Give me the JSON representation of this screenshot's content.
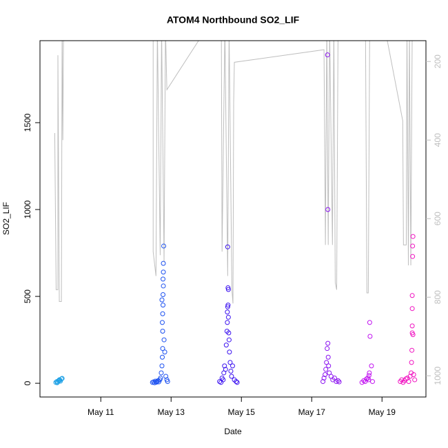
{
  "chart_data": {
    "type": "scatter",
    "title": "ATOM4 Northbound SO2_LIF",
    "x_label": "Date",
    "y_label": "SO2_LIF",
    "xlim": [
      9.27,
      20.25
    ],
    "xticks": [
      {
        "value": 11,
        "label": "May 11"
      },
      {
        "value": 13,
        "label": "May 13"
      },
      {
        "value": 15,
        "label": "May 15"
      },
      {
        "value": 17,
        "label": "May 17"
      },
      {
        "value": 19,
        "label": "May 19"
      }
    ],
    "ylim": [
      -79,
      1972
    ],
    "yticks": [
      0,
      500,
      1000,
      1500
    ],
    "y2lim": [
      1054,
      147
    ],
    "y2ticks": [
      200,
      400,
      600,
      800,
      1000
    ],
    "series": [
      {
        "color": "#1ca0e6",
        "x": [
          9.72,
          9.75,
          9.78,
          9.8,
          9.82,
          9.85,
          9.88,
          9.9,
          9.76,
          9.84
        ],
        "values": [
          5,
          10,
          8,
          15,
          20,
          12,
          25,
          28,
          3,
          18
        ]
      },
      {
        "color": "#1a4ff0",
        "x": [
          12.47,
          12.5,
          12.53,
          12.55,
          12.58,
          12.6,
          12.63,
          12.65,
          12.68,
          12.7,
          12.72,
          12.74,
          12.75,
          12.76,
          12.76,
          12.76,
          12.77,
          12.77,
          12.77,
          12.78,
          12.78,
          12.79,
          12.8,
          12.82,
          12.85,
          12.88,
          12.9,
          12.75,
          12.74,
          12.78
        ],
        "values": [
          5,
          8,
          3,
          12,
          6,
          10,
          15,
          8,
          20,
          30,
          60,
          100,
          150,
          200,
          300,
          400,
          450,
          510,
          600,
          640,
          690,
          790,
          250,
          180,
          40,
          20,
          10,
          350,
          480,
          560
        ]
      },
      {
        "color": "#3a10f0",
        "x": [
          14.38,
          14.42,
          14.45,
          14.48,
          14.5,
          14.52,
          14.55,
          14.57,
          14.59,
          14.6,
          14.61,
          14.62,
          14.62,
          14.63,
          14.63,
          14.64,
          14.65,
          14.66,
          14.68,
          14.7,
          14.72,
          14.75,
          14.8,
          14.85,
          14.88,
          14.61,
          14.6
        ],
        "values": [
          10,
          5,
          30,
          20,
          60,
          100,
          80,
          220,
          300,
          350,
          440,
          450,
          550,
          540,
          380,
          290,
          250,
          180,
          120,
          70,
          40,
          100,
          20,
          10,
          5,
          785,
          410
        ]
      },
      {
        "color": "#8a10f0",
        "x": [
          17.32,
          17.35,
          17.38,
          17.4,
          17.42,
          17.44,
          17.45,
          17.46,
          17.46,
          17.47,
          17.48,
          17.5,
          17.55,
          17.6,
          17.65,
          17.7,
          17.75,
          17.78
        ],
        "values": [
          10,
          30,
          50,
          80,
          120,
          200,
          1890,
          1000,
          230,
          150,
          100,
          60,
          40,
          20,
          30,
          10,
          15,
          8
        ]
      },
      {
        "color": "#c010f0",
        "x": [
          18.43,
          18.48,
          18.52,
          18.56,
          18.6,
          18.62,
          18.63,
          18.64,
          18.65,
          18.66,
          18.7,
          18.73
        ],
        "values": [
          5,
          15,
          10,
          25,
          30,
          20,
          45,
          60,
          350,
          270,
          100,
          10
        ]
      },
      {
        "color": "#f010c0",
        "x": [
          19.52,
          19.56,
          19.6,
          19.64,
          19.68,
          19.72,
          19.76,
          19.8,
          19.83,
          19.84,
          19.85,
          19.86,
          19.86,
          19.86,
          19.86,
          19.87,
          19.87,
          19.88,
          19.88,
          19.9,
          19.93
        ],
        "values": [
          10,
          20,
          5,
          15,
          25,
          30,
          10,
          40,
          60,
          120,
          190,
          290,
          330,
          430,
          505,
          730,
          790,
          845,
          280,
          50,
          20
        ]
      },
      {
        "type": "line",
        "axis": "y2",
        "color": "#bebebe",
        "x": [
          9.69,
          9.73,
          9.78,
          9.78,
          9.82,
          9.88,
          9.9,
          9.92,
          9.94,
          12.49,
          12.49,
          12.57,
          12.61,
          12.69,
          12.73,
          12.8,
          12.84,
          12.88,
          14.02,
          14.43,
          14.45,
          14.53,
          14.61,
          14.65,
          14.73,
          14.76,
          14.78,
          14.8,
          17.35,
          17.39,
          17.43,
          17.47,
          17.51,
          17.59,
          17.63,
          17.67,
          17.71,
          17.75,
          18.53,
          18.57,
          18.61,
          18.65,
          19.08,
          19.59,
          19.61,
          19.69,
          19.71,
          19.75,
          19.78,
          19.82,
          19.86
        ],
        "values": [
          382,
          781,
          781,
          184,
          811,
          811,
          114,
          400,
          114,
          114,
          684,
          746,
          114,
          693,
          114,
          711,
          114,
          272,
          114,
          114,
          684,
          114,
          746,
          114,
          781,
          816,
          304,
          202,
          170,
          667,
          114,
          667,
          114,
          667,
          114,
          763,
          781,
          114,
          114,
          789,
          789,
          114,
          114,
          351,
          667,
          667,
          114,
          719,
          114,
          719,
          114
        ]
      }
    ]
  }
}
